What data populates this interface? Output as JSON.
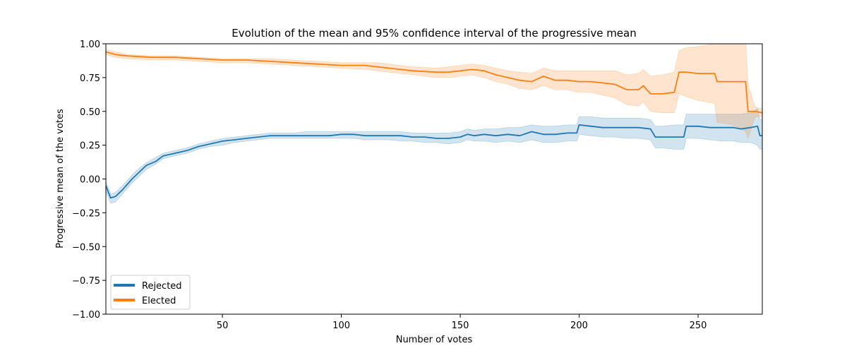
{
  "chart_data": {
    "type": "line",
    "title": "Evolution of the mean and 95% confidence interval of the progressive mean",
    "xlabel": "Number of votes",
    "ylabel": "Progressive mean of the votes",
    "xlim": [
      1,
      277
    ],
    "ylim": [
      -1.0,
      1.0
    ],
    "x_ticks": [
      50,
      100,
      150,
      200,
      250
    ],
    "y_ticks": [
      -1.0,
      -0.75,
      -0.5,
      -0.25,
      0.0,
      0.25,
      0.5,
      0.75,
      1.0
    ],
    "x_tick_labels": [
      "50",
      "100",
      "150",
      "200",
      "250"
    ],
    "y_tick_labels": [
      "−1.00",
      "−0.75",
      "−0.50",
      "−0.25",
      "0.00",
      "0.25",
      "0.50",
      "0.75",
      "1.00"
    ],
    "grid": false,
    "legend_position": "lower-left",
    "series": [
      {
        "name": "Rejected",
        "color": "#1f77b4",
        "band_color": "#1f77b4",
        "points": [
          [
            1,
            -0.05,
            -0.09,
            -0.02
          ],
          [
            3,
            -0.14,
            -0.18,
            -0.11
          ],
          [
            5,
            -0.13,
            -0.17,
            -0.1
          ],
          [
            8,
            -0.08,
            -0.11,
            -0.05
          ],
          [
            12,
            0.0,
            -0.03,
            0.03
          ],
          [
            15,
            0.05,
            0.02,
            0.08
          ],
          [
            18,
            0.1,
            0.07,
            0.12
          ],
          [
            22,
            0.13,
            0.11,
            0.16
          ],
          [
            25,
            0.17,
            0.15,
            0.19
          ],
          [
            30,
            0.19,
            0.17,
            0.21
          ],
          [
            35,
            0.21,
            0.19,
            0.23
          ],
          [
            40,
            0.24,
            0.22,
            0.26
          ],
          [
            45,
            0.26,
            0.24,
            0.28
          ],
          [
            50,
            0.28,
            0.25,
            0.3
          ],
          [
            55,
            0.29,
            0.27,
            0.31
          ],
          [
            60,
            0.3,
            0.28,
            0.32
          ],
          [
            65,
            0.31,
            0.29,
            0.33
          ],
          [
            70,
            0.32,
            0.3,
            0.34
          ],
          [
            75,
            0.32,
            0.3,
            0.34
          ],
          [
            80,
            0.32,
            0.3,
            0.34
          ],
          [
            85,
            0.32,
            0.3,
            0.35
          ],
          [
            90,
            0.32,
            0.3,
            0.35
          ],
          [
            95,
            0.32,
            0.3,
            0.35
          ],
          [
            100,
            0.33,
            0.3,
            0.35
          ],
          [
            105,
            0.33,
            0.3,
            0.35
          ],
          [
            110,
            0.32,
            0.29,
            0.35
          ],
          [
            115,
            0.32,
            0.29,
            0.35
          ],
          [
            120,
            0.32,
            0.29,
            0.35
          ],
          [
            125,
            0.32,
            0.28,
            0.35
          ],
          [
            130,
            0.31,
            0.28,
            0.34
          ],
          [
            135,
            0.31,
            0.27,
            0.34
          ],
          [
            140,
            0.3,
            0.27,
            0.34
          ],
          [
            145,
            0.3,
            0.26,
            0.34
          ],
          [
            150,
            0.31,
            0.27,
            0.35
          ],
          [
            153,
            0.33,
            0.29,
            0.37
          ],
          [
            156,
            0.32,
            0.28,
            0.36
          ],
          [
            160,
            0.33,
            0.28,
            0.37
          ],
          [
            165,
            0.32,
            0.27,
            0.37
          ],
          [
            170,
            0.33,
            0.28,
            0.38
          ],
          [
            175,
            0.32,
            0.27,
            0.38
          ],
          [
            180,
            0.35,
            0.29,
            0.4
          ],
          [
            185,
            0.33,
            0.27,
            0.39
          ],
          [
            190,
            0.33,
            0.27,
            0.39
          ],
          [
            195,
            0.34,
            0.28,
            0.4
          ],
          [
            199,
            0.34,
            0.28,
            0.4
          ],
          [
            200,
            0.4,
            0.33,
            0.46
          ],
          [
            205,
            0.39,
            0.32,
            0.46
          ],
          [
            210,
            0.38,
            0.31,
            0.45
          ],
          [
            215,
            0.38,
            0.31,
            0.45
          ],
          [
            220,
            0.38,
            0.3,
            0.45
          ],
          [
            225,
            0.38,
            0.3,
            0.45
          ],
          [
            230,
            0.37,
            0.29,
            0.44
          ],
          [
            232,
            0.31,
            0.23,
            0.39
          ],
          [
            235,
            0.31,
            0.23,
            0.39
          ],
          [
            240,
            0.31,
            0.22,
            0.4
          ],
          [
            244,
            0.31,
            0.22,
            0.4
          ],
          [
            245,
            0.39,
            0.3,
            0.48
          ],
          [
            250,
            0.39,
            0.3,
            0.48
          ],
          [
            255,
            0.38,
            0.29,
            0.48
          ],
          [
            260,
            0.38,
            0.28,
            0.48
          ],
          [
            265,
            0.38,
            0.28,
            0.48
          ],
          [
            268,
            0.37,
            0.27,
            0.48
          ],
          [
            272,
            0.38,
            0.27,
            0.49
          ],
          [
            275,
            0.39,
            0.25,
            0.52
          ],
          [
            276,
            0.32,
            0.22,
            0.44
          ],
          [
            277,
            0.32,
            0.22,
            0.44
          ]
        ]
      },
      {
        "name": "Elected",
        "color": "#ff7f0e",
        "band_color": "#ff7f0e",
        "points": [
          [
            1,
            0.94,
            0.92,
            0.96
          ],
          [
            5,
            0.92,
            0.9,
            0.94
          ],
          [
            10,
            0.91,
            0.89,
            0.92
          ],
          [
            20,
            0.9,
            0.88,
            0.91
          ],
          [
            30,
            0.9,
            0.88,
            0.91
          ],
          [
            40,
            0.89,
            0.87,
            0.9
          ],
          [
            50,
            0.88,
            0.86,
            0.89
          ],
          [
            60,
            0.88,
            0.86,
            0.89
          ],
          [
            70,
            0.87,
            0.85,
            0.89
          ],
          [
            80,
            0.86,
            0.84,
            0.88
          ],
          [
            90,
            0.85,
            0.83,
            0.87
          ],
          [
            100,
            0.84,
            0.82,
            0.86
          ],
          [
            110,
            0.84,
            0.81,
            0.86
          ],
          [
            115,
            0.83,
            0.8,
            0.86
          ],
          [
            120,
            0.82,
            0.79,
            0.85
          ],
          [
            130,
            0.8,
            0.77,
            0.83
          ],
          [
            140,
            0.79,
            0.75,
            0.82
          ],
          [
            145,
            0.79,
            0.75,
            0.83
          ],
          [
            150,
            0.8,
            0.76,
            0.84
          ],
          [
            155,
            0.81,
            0.77,
            0.85
          ],
          [
            160,
            0.8,
            0.75,
            0.84
          ],
          [
            165,
            0.77,
            0.72,
            0.82
          ],
          [
            170,
            0.75,
            0.7,
            0.8
          ],
          [
            175,
            0.73,
            0.67,
            0.79
          ],
          [
            180,
            0.72,
            0.66,
            0.78
          ],
          [
            185,
            0.76,
            0.69,
            0.82
          ],
          [
            190,
            0.73,
            0.66,
            0.8
          ],
          [
            195,
            0.73,
            0.66,
            0.8
          ],
          [
            200,
            0.72,
            0.64,
            0.8
          ],
          [
            205,
            0.72,
            0.64,
            0.8
          ],
          [
            210,
            0.71,
            0.62,
            0.8
          ],
          [
            215,
            0.7,
            0.6,
            0.8
          ],
          [
            220,
            0.66,
            0.55,
            0.77
          ],
          [
            225,
            0.66,
            0.54,
            0.78
          ],
          [
            227,
            0.69,
            0.57,
            0.81
          ],
          [
            230,
            0.63,
            0.5,
            0.76
          ],
          [
            235,
            0.63,
            0.49,
            0.77
          ],
          [
            240,
            0.64,
            0.49,
            0.79
          ],
          [
            242,
            0.79,
            0.63,
            0.95
          ],
          [
            245,
            0.79,
            0.61,
            0.97
          ],
          [
            250,
            0.78,
            0.58,
            0.98
          ],
          [
            257,
            0.78,
            0.56,
            1.0
          ],
          [
            258,
            0.72,
            0.42,
            1.0
          ],
          [
            265,
            0.72,
            0.4,
            1.0
          ],
          [
            270,
            0.72,
            0.35,
            1.0
          ],
          [
            271,
            0.5,
            0.3,
            0.7
          ],
          [
            274,
            0.5,
            0.46,
            0.53
          ],
          [
            277,
            0.49,
            0.46,
            0.52
          ]
        ]
      }
    ]
  }
}
